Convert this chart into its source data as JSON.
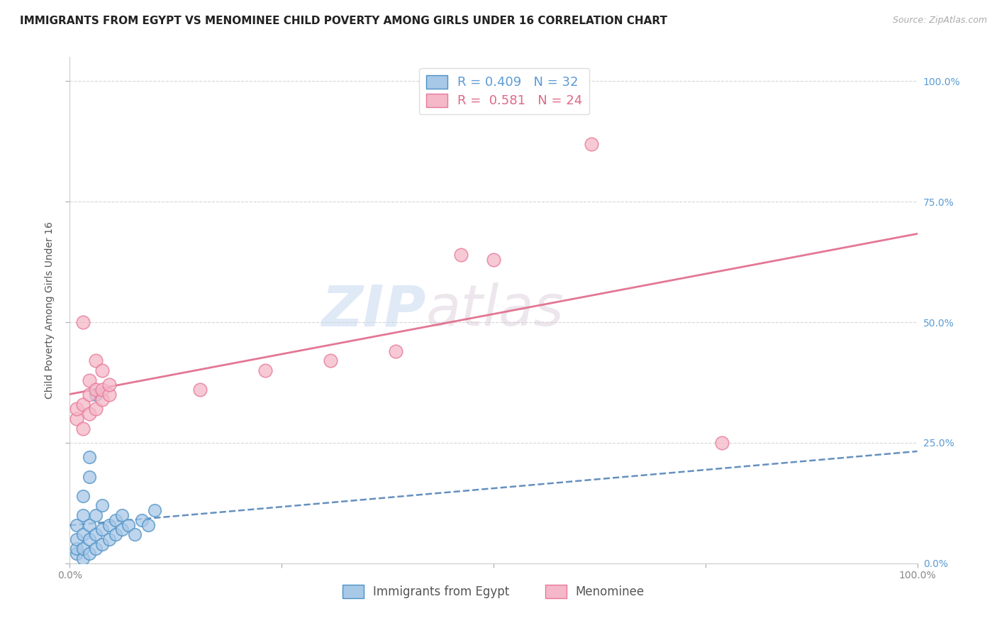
{
  "title": "IMMIGRANTS FROM EGYPT VS MENOMINEE CHILD POVERTY AMONG GIRLS UNDER 16 CORRELATION CHART",
  "source": "Source: ZipAtlas.com",
  "ylabel": "Child Poverty Among Girls Under 16",
  "ytick_labels": [
    "0.0%",
    "25.0%",
    "50.0%",
    "75.0%",
    "100.0%"
  ],
  "ytick_values": [
    0.0,
    0.25,
    0.5,
    0.75,
    1.0
  ],
  "legend_label1": "Immigrants from Egypt",
  "legend_label2": "Menominee",
  "R1": 0.409,
  "N1": 32,
  "R2": 0.581,
  "N2": 24,
  "blue_color": "#a8c8e8",
  "blue_edge": "#4a90c4",
  "blue_line": "#4a7db5",
  "pink_color": "#f4b8c8",
  "pink_edge": "#e87898",
  "pink_line": "#e06888",
  "blue_scatter": [
    [
      0.001,
      0.02
    ],
    [
      0.001,
      0.03
    ],
    [
      0.001,
      0.05
    ],
    [
      0.001,
      0.08
    ],
    [
      0.002,
      0.01
    ],
    [
      0.002,
      0.03
    ],
    [
      0.002,
      0.06
    ],
    [
      0.002,
      0.1
    ],
    [
      0.002,
      0.14
    ],
    [
      0.003,
      0.02
    ],
    [
      0.003,
      0.05
    ],
    [
      0.003,
      0.08
    ],
    [
      0.003,
      0.18
    ],
    [
      0.003,
      0.22
    ],
    [
      0.004,
      0.03
    ],
    [
      0.004,
      0.06
    ],
    [
      0.004,
      0.1
    ],
    [
      0.004,
      0.35
    ],
    [
      0.005,
      0.04
    ],
    [
      0.005,
      0.07
    ],
    [
      0.005,
      0.12
    ],
    [
      0.006,
      0.05
    ],
    [
      0.006,
      0.08
    ],
    [
      0.007,
      0.06
    ],
    [
      0.007,
      0.09
    ],
    [
      0.008,
      0.07
    ],
    [
      0.008,
      0.1
    ],
    [
      0.009,
      0.08
    ],
    [
      0.01,
      0.06
    ],
    [
      0.011,
      0.09
    ],
    [
      0.012,
      0.08
    ],
    [
      0.013,
      0.11
    ]
  ],
  "pink_scatter": [
    [
      0.001,
      0.3
    ],
    [
      0.001,
      0.32
    ],
    [
      0.002,
      0.28
    ],
    [
      0.002,
      0.33
    ],
    [
      0.002,
      0.5
    ],
    [
      0.003,
      0.31
    ],
    [
      0.003,
      0.35
    ],
    [
      0.003,
      0.38
    ],
    [
      0.004,
      0.32
    ],
    [
      0.004,
      0.36
    ],
    [
      0.004,
      0.42
    ],
    [
      0.005,
      0.34
    ],
    [
      0.005,
      0.36
    ],
    [
      0.005,
      0.4
    ],
    [
      0.006,
      0.35
    ],
    [
      0.006,
      0.37
    ],
    [
      0.02,
      0.36
    ],
    [
      0.03,
      0.4
    ],
    [
      0.04,
      0.42
    ],
    [
      0.05,
      0.44
    ],
    [
      0.06,
      0.64
    ],
    [
      0.065,
      0.63
    ],
    [
      0.08,
      0.87
    ],
    [
      0.1,
      0.25
    ]
  ],
  "watermark_zip": "ZIP",
  "watermark_atlas": "atlas",
  "title_fontsize": 11,
  "source_fontsize": 9,
  "axis_label_fontsize": 10,
  "tick_fontsize": 10,
  "legend_fontsize": 12,
  "background_color": "#ffffff",
  "grid_color": "#cccccc",
  "xlim": [
    0.0,
    0.13
  ],
  "ylim": [
    0.0,
    1.05
  ]
}
